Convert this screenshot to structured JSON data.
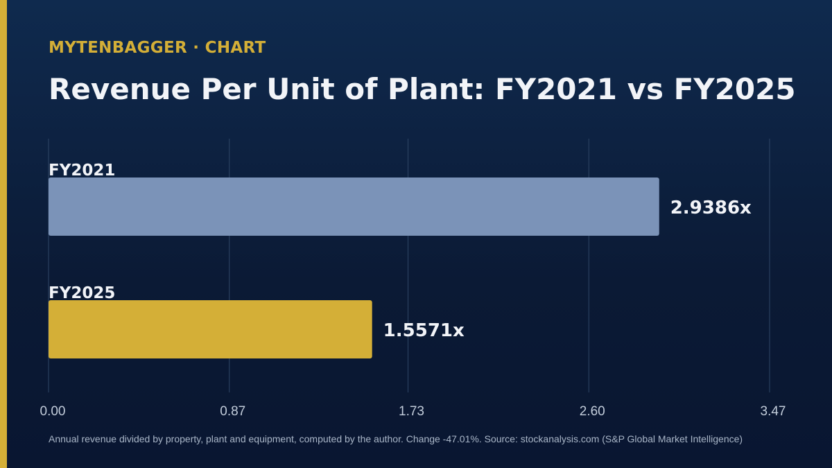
{
  "header": {
    "eyebrow": "MYTENBAGGER · CHART",
    "title": "Revenue Per Unit of Plant: FY2021 vs FY2025"
  },
  "footnote": "Annual revenue divided by property, plant and equipment, computed by the author. Change -47.01%. Source: stockanalysis.com (S&P Global Market Intelligence)",
  "colors": {
    "background": "#0f2a4e",
    "accent": "#d4af37",
    "bar_fy2021": "#7b93b8",
    "bar_fy2025": "#d4af37",
    "gridline": "#2f4666",
    "text": "#f2f4f8",
    "tick": "#c3cddb"
  },
  "chart_data": {
    "type": "bar",
    "orientation": "horizontal",
    "categories": [
      "FY2021",
      "FY2025"
    ],
    "values": [
      2.9386,
      1.5571
    ],
    "value_labels": [
      "2.9386x",
      "1.5571x"
    ],
    "xlim": [
      0,
      3.47
    ],
    "xticks": [
      "0.00",
      "0.87",
      "1.73",
      "2.60",
      "3.47"
    ],
    "grid": "vertical"
  }
}
